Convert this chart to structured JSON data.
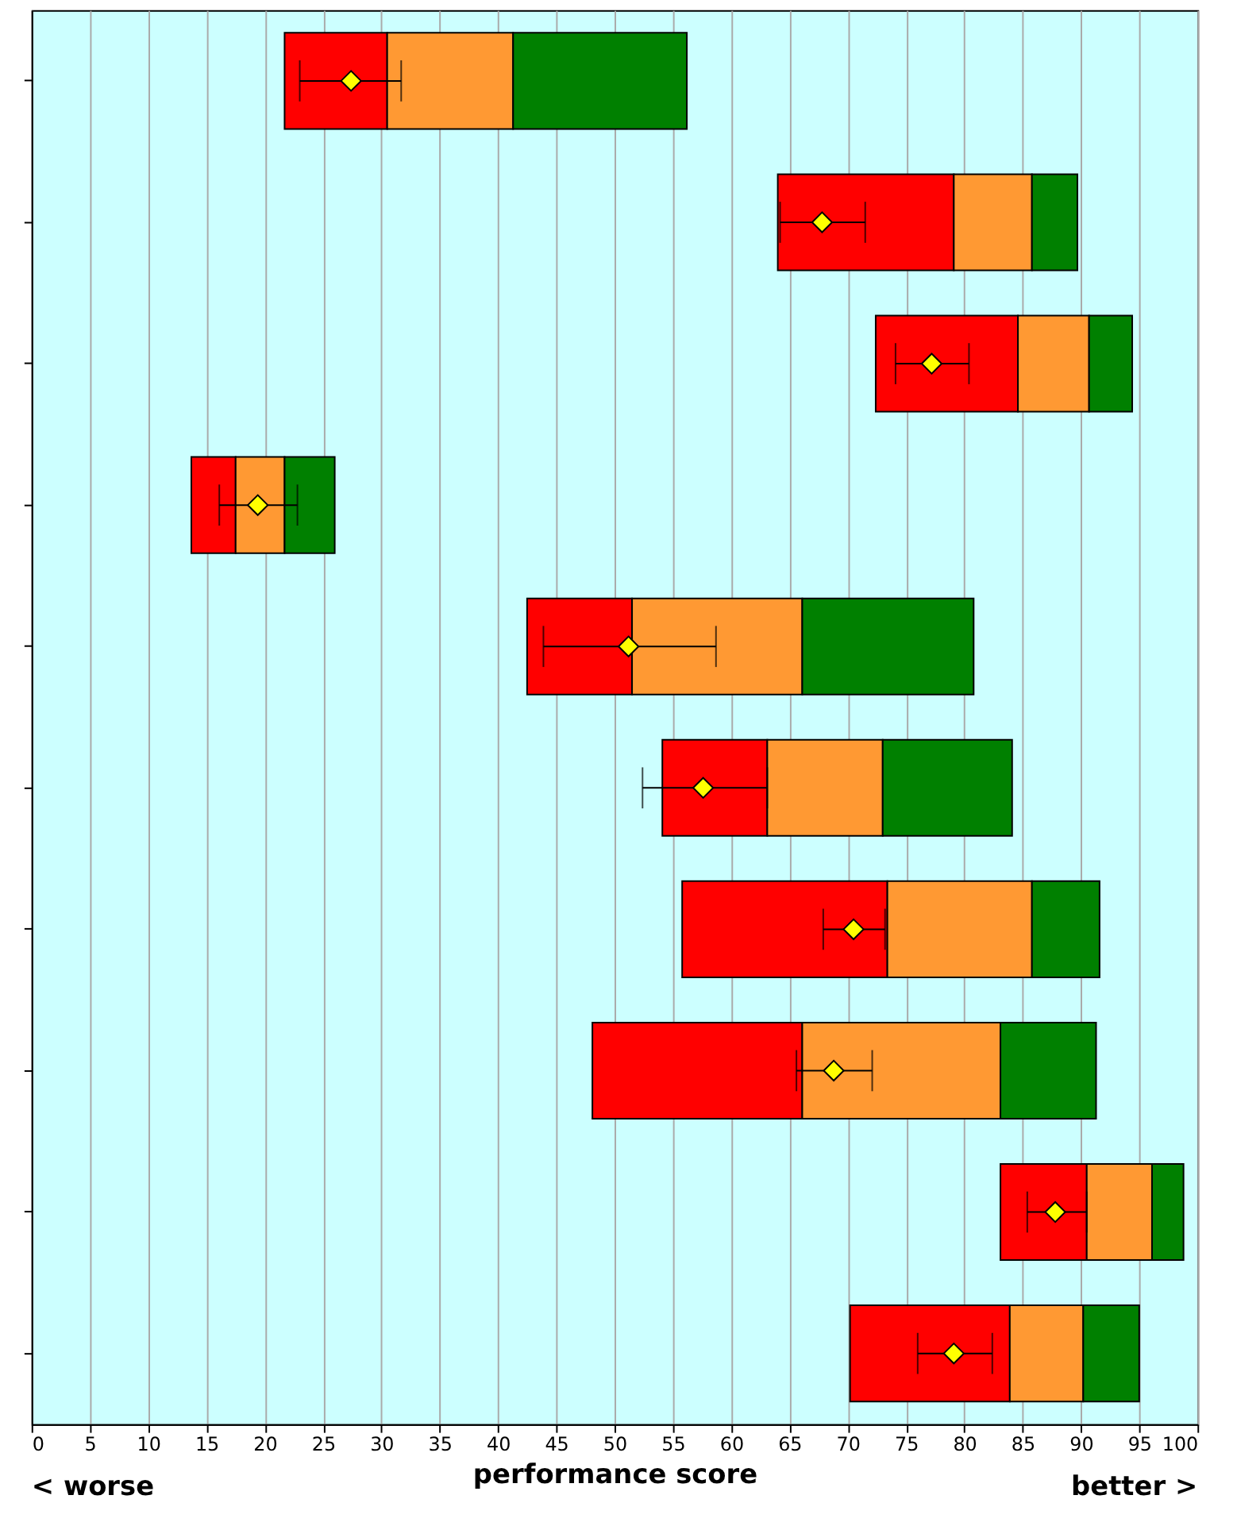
{
  "chart_data": {
    "type": "bar",
    "orientation": "horizontal",
    "xlabel": "performance score",
    "annotations": [
      "< worse",
      "better >"
    ],
    "categories": [
      null,
      null,
      null,
      null,
      null,
      null,
      null,
      null,
      null,
      null
    ],
    "series": [
      {
        "color": "#ff0000",
        "base": [
          21.7,
          64.0,
          72.4,
          13.7,
          42.5,
          54.1,
          55.8,
          48.1,
          83.1,
          70.2
        ],
        "values": [
          8.8,
          15.1,
          12.2,
          3.8,
          9.0,
          9.0,
          17.6,
          18.0,
          7.4,
          13.7
        ]
      },
      {
        "color": "#ff9933",
        "base": [
          30.5,
          79.1,
          84.6,
          17.5,
          51.5,
          63.1,
          73.4,
          66.1,
          90.5,
          83.9
        ],
        "values": [
          10.8,
          6.7,
          6.1,
          4.2,
          14.6,
          9.9,
          12.4,
          17.0,
          5.6,
          6.3
        ]
      },
      {
        "color": "#008000",
        "base": [
          41.3,
          85.8,
          90.7,
          21.7,
          66.1,
          73.0,
          85.8,
          83.1,
          96.1,
          90.2
        ],
        "values": [
          14.9,
          3.9,
          3.7,
          4.3,
          14.7,
          11.1,
          5.8,
          8.2,
          2.7,
          4.8
        ]
      },
      {
        "type": "scatter",
        "color": "#ffff00",
        "marker": "diamond",
        "values": [
          27.4,
          67.8,
          77.2,
          19.4,
          51.2,
          57.6,
          70.5,
          68.8,
          87.8,
          79.1
        ],
        "errors": [
          [
            23.0,
            31.7
          ],
          [
            64.2,
            71.5
          ],
          [
            74.1,
            80.4
          ],
          [
            16.1,
            22.8
          ],
          [
            43.9,
            58.7
          ],
          [
            52.4,
            63.1
          ],
          [
            67.9,
            73.2
          ],
          [
            65.6,
            72.1
          ],
          [
            85.4,
            90.5
          ],
          [
            76.0,
            82.4
          ]
        ]
      }
    ],
    "xlim": [
      0,
      100
    ],
    "xticks": [
      0,
      5,
      10,
      15,
      20,
      25,
      30,
      35,
      40,
      45,
      50,
      55,
      60,
      65,
      70,
      75,
      80,
      85,
      90,
      95,
      100
    ],
    "grid": "x",
    "legend": false,
    "tick_labels": "x"
  }
}
